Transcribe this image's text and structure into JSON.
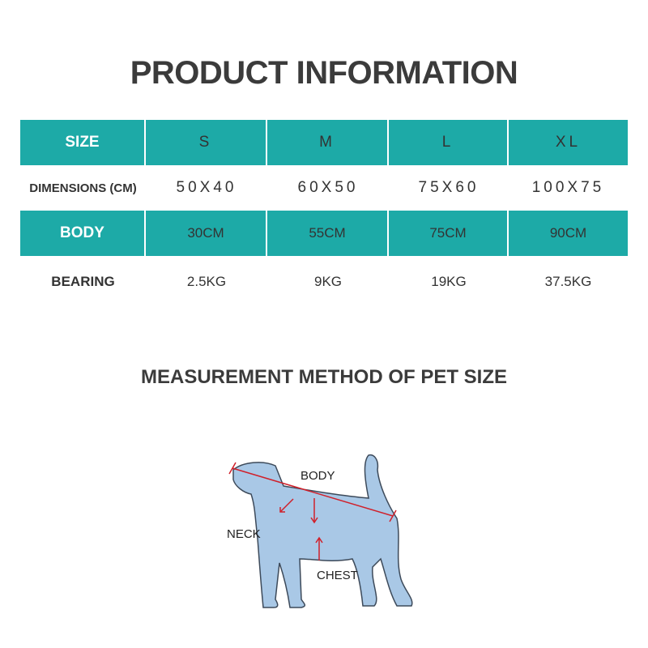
{
  "header": {
    "title": "PRODUCT INFORMATION"
  },
  "table": {
    "rows": [
      [
        "SIZE",
        "S",
        "M",
        "L",
        "XL"
      ],
      [
        "DIMENSIONS (CM)",
        "50X40",
        "60X50",
        "75X60",
        "100X75"
      ],
      [
        "BODY",
        "30CM",
        "55CM",
        "75CM",
        "90CM"
      ],
      [
        "BEARING",
        "2.5KG",
        "9KG",
        "19KG",
        "37.5KG"
      ]
    ]
  },
  "diagram": {
    "title": "MEASUREMENT METHOD OF PET SIZE",
    "labels": {
      "body": "BODY",
      "neck": "NECK",
      "chest": "CHEST"
    }
  }
}
